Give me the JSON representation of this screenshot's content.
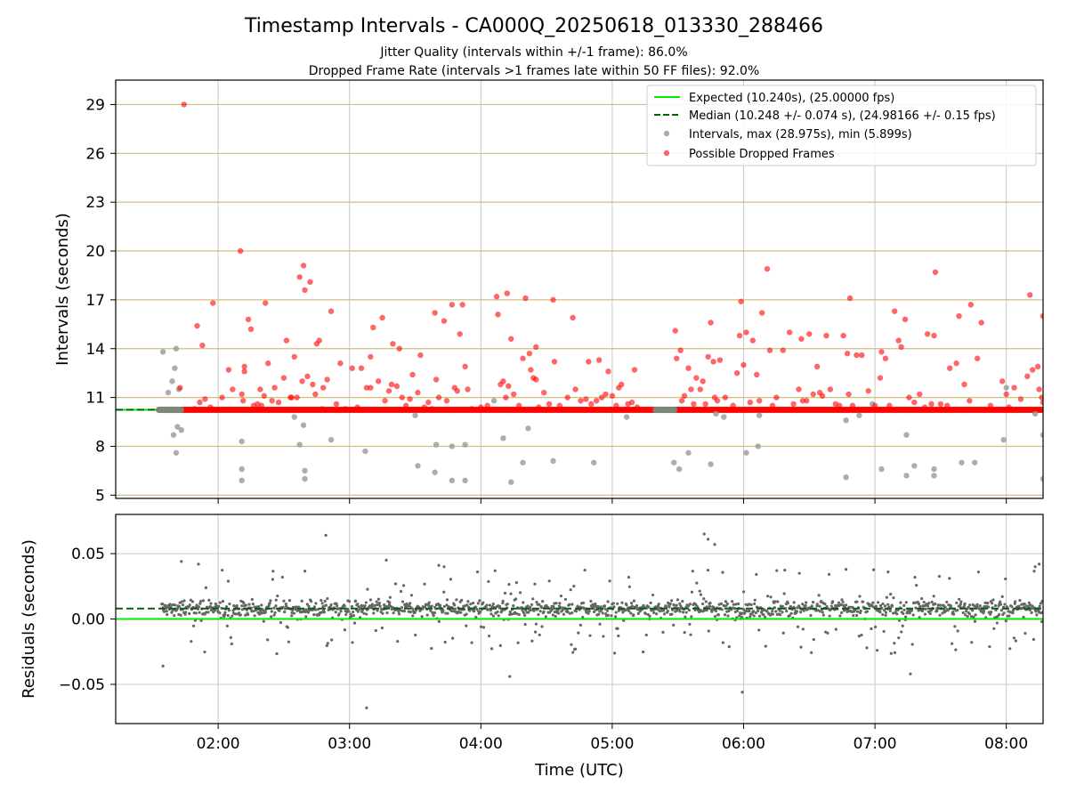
{
  "title": "Timestamp Intervals - CA000Q_20250618_013330_288466",
  "subtitle_1": "Jitter Quality (intervals within +/-1 frame): 86.0%",
  "subtitle_2": "Dropped Frame Rate (intervals >1 frames late within 50 FF files): 92.0%",
  "colors": {
    "expected": "#00ee00",
    "median": "#006400",
    "intervals": "#999999",
    "dropped": "#ff0000",
    "residuals": "#666666",
    "hgrid_top": "#d2be82",
    "grid": "#c8c8c8"
  },
  "chart_data": [
    {
      "type": "scatter",
      "ylabel": "Intervals (seconds)",
      "ylim": [
        4.8,
        30.5
      ],
      "yticks": [
        5,
        8,
        11,
        14,
        17,
        20,
        23,
        26,
        29
      ],
      "xlim_hours": [
        1.22,
        8.28
      ],
      "grid": true,
      "legend_position": "top-right",
      "legend": [
        "Expected (10.240s), (25.00000 fps)",
        "Median (10.248 +/- 0.074 s), (24.98166 +/- 0.15 fps)",
        "Intervals, max (28.975s), min (5.899s)",
        "Possible Dropped Frames"
      ],
      "expected_line": 10.24,
      "median_line": 10.248,
      "dense_band": {
        "y": 10.24,
        "x_start_hours": 1.55,
        "x_end_hours": 8.28
      },
      "gray_segments_hours": [
        [
          1.55,
          1.72
        ],
        [
          5.33,
          5.48
        ]
      ],
      "intervals_points": [
        [
          1.58,
          13.8
        ],
        [
          1.62,
          11.3
        ],
        [
          1.65,
          12.0
        ],
        [
          1.67,
          12.8
        ],
        [
          1.68,
          14.0
        ],
        [
          1.69,
          9.2
        ],
        [
          1.7,
          11.5
        ],
        [
          1.72,
          9.0
        ],
        [
          1.66,
          8.7
        ],
        [
          1.68,
          7.6
        ],
        [
          2.18,
          8.3
        ],
        [
          2.18,
          6.6
        ],
        [
          2.18,
          5.9
        ],
        [
          2.58,
          9.8
        ],
        [
          2.62,
          8.1
        ],
        [
          2.65,
          9.3
        ],
        [
          2.66,
          6.5
        ],
        [
          2.66,
          6.0
        ],
        [
          2.86,
          8.4
        ],
        [
          3.12,
          7.7
        ],
        [
          3.5,
          9.9
        ],
        [
          3.52,
          6.8
        ],
        [
          3.65,
          6.4
        ],
        [
          3.66,
          8.1
        ],
        [
          3.78,
          8.0
        ],
        [
          3.78,
          5.9
        ],
        [
          3.88,
          8.1
        ],
        [
          3.88,
          5.9
        ],
        [
          4.1,
          10.8
        ],
        [
          4.17,
          8.5
        ],
        [
          4.23,
          5.8
        ],
        [
          4.32,
          7.0
        ],
        [
          4.36,
          9.1
        ],
        [
          4.55,
          7.1
        ],
        [
          4.86,
          7.0
        ],
        [
          5.11,
          9.8
        ],
        [
          5.47,
          7.0
        ],
        [
          5.51,
          6.6
        ],
        [
          5.58,
          7.6
        ],
        [
          5.75,
          6.9
        ],
        [
          5.79,
          10.0
        ],
        [
          5.85,
          9.8
        ],
        [
          6.02,
          7.6
        ],
        [
          6.11,
          8.0
        ],
        [
          6.12,
          9.9
        ],
        [
          6.78,
          6.1
        ],
        [
          6.78,
          9.6
        ],
        [
          6.88,
          9.9
        ],
        [
          6.98,
          10.6
        ],
        [
          7.05,
          6.6
        ],
        [
          7.24,
          8.7
        ],
        [
          7.24,
          6.2
        ],
        [
          7.3,
          6.8
        ],
        [
          7.45,
          6.2
        ],
        [
          7.45,
          6.6
        ],
        [
          7.66,
          7.0
        ],
        [
          7.76,
          7.0
        ],
        [
          7.98,
          8.4
        ],
        [
          8.0,
          11.6
        ],
        [
          8.22,
          10.0
        ],
        [
          8.28,
          8.7
        ],
        [
          8.28,
          6.0
        ]
      ],
      "dropped_points": [
        [
          1.74,
          29.0
        ],
        [
          1.71,
          11.6
        ],
        [
          1.82,
          10.3
        ],
        [
          1.86,
          10.7
        ],
        [
          1.88,
          14.2
        ],
        [
          1.9,
          10.9
        ],
        [
          1.84,
          15.4
        ],
        [
          1.96,
          16.8
        ],
        [
          1.94,
          10.4
        ],
        [
          2.03,
          11.0
        ],
        [
          2.08,
          12.7
        ],
        [
          2.11,
          11.5
        ],
        [
          2.17,
          20.0
        ],
        [
          2.18,
          11.2
        ],
        [
          2.19,
          10.8
        ],
        [
          2.2,
          12.9
        ],
        [
          2.2,
          12.6
        ],
        [
          2.23,
          15.8
        ],
        [
          2.25,
          15.2
        ],
        [
          2.27,
          10.5
        ],
        [
          2.3,
          10.6
        ],
        [
          2.32,
          11.5
        ],
        [
          2.33,
          10.5
        ],
        [
          2.35,
          11.1
        ],
        [
          2.36,
          16.8
        ],
        [
          2.38,
          13.1
        ],
        [
          2.41,
          10.8
        ],
        [
          2.43,
          11.6
        ],
        [
          2.46,
          10.7
        ],
        [
          2.5,
          12.2
        ],
        [
          2.52,
          14.5
        ],
        [
          2.55,
          11.0
        ],
        [
          2.56,
          11.0
        ],
        [
          2.58,
          13.5
        ],
        [
          2.6,
          11.0
        ],
        [
          2.62,
          18.4
        ],
        [
          2.64,
          12.0
        ],
        [
          2.65,
          19.1
        ],
        [
          2.66,
          17.6
        ],
        [
          2.68,
          12.3
        ],
        [
          2.7,
          18.1
        ],
        [
          2.72,
          11.8
        ],
        [
          2.74,
          11.2
        ],
        [
          2.75,
          14.3
        ],
        [
          2.77,
          14.5
        ],
        [
          2.79,
          10.3
        ],
        [
          2.8,
          11.6
        ],
        [
          2.83,
          12.1
        ],
        [
          2.86,
          16.3
        ],
        [
          2.9,
          10.6
        ],
        [
          2.93,
          13.1
        ],
        [
          2.97,
          10.3
        ],
        [
          3.02,
          12.8
        ],
        [
          3.06,
          10.4
        ],
        [
          3.09,
          12.8
        ],
        [
          3.13,
          11.6
        ],
        [
          3.16,
          13.5
        ],
        [
          3.16,
          11.6
        ],
        [
          3.18,
          15.3
        ],
        [
          3.22,
          12.0
        ],
        [
          3.25,
          15.9
        ],
        [
          3.27,
          10.8
        ],
        [
          3.3,
          11.4
        ],
        [
          3.32,
          11.8
        ],
        [
          3.33,
          14.3
        ],
        [
          3.36,
          11.7
        ],
        [
          3.38,
          14.0
        ],
        [
          3.4,
          11.0
        ],
        [
          3.43,
          10.5
        ],
        [
          3.46,
          10.9
        ],
        [
          3.48,
          12.4
        ],
        [
          3.52,
          11.3
        ],
        [
          3.54,
          13.6
        ],
        [
          3.57,
          10.4
        ],
        [
          3.6,
          10.7
        ],
        [
          3.63,
          10.3
        ],
        [
          3.65,
          16.2
        ],
        [
          3.66,
          12.1
        ],
        [
          3.68,
          11.0
        ],
        [
          3.72,
          15.7
        ],
        [
          3.74,
          10.8
        ],
        [
          3.78,
          16.7
        ],
        [
          3.8,
          11.6
        ],
        [
          3.82,
          11.4
        ],
        [
          3.84,
          14.9
        ],
        [
          3.86,
          16.7
        ],
        [
          3.88,
          12.9
        ],
        [
          3.9,
          11.5
        ],
        [
          3.93,
          10.3
        ],
        [
          4.0,
          10.4
        ],
        [
          4.05,
          10.5
        ],
        [
          4.12,
          17.2
        ],
        [
          4.13,
          16.1
        ],
        [
          4.15,
          11.8
        ],
        [
          4.17,
          12.0
        ],
        [
          4.19,
          11.0
        ],
        [
          4.2,
          17.4
        ],
        [
          4.21,
          11.7
        ],
        [
          4.23,
          14.6
        ],
        [
          4.25,
          11.2
        ],
        [
          4.29,
          10.5
        ],
        [
          4.32,
          13.4
        ],
        [
          4.34,
          17.1
        ],
        [
          4.37,
          13.7
        ],
        [
          4.38,
          12.7
        ],
        [
          4.4,
          12.2
        ],
        [
          4.42,
          12.1
        ],
        [
          4.42,
          14.1
        ],
        [
          4.44,
          10.4
        ],
        [
          4.48,
          11.3
        ],
        [
          4.52,
          10.6
        ],
        [
          4.55,
          17.0
        ],
        [
          4.56,
          13.2
        ],
        [
          4.6,
          10.5
        ],
        [
          4.66,
          11.0
        ],
        [
          4.7,
          15.9
        ],
        [
          4.72,
          11.5
        ],
        [
          4.76,
          10.8
        ],
        [
          4.8,
          10.9
        ],
        [
          4.82,
          13.2
        ],
        [
          4.84,
          10.6
        ],
        [
          4.88,
          10.8
        ],
        [
          4.9,
          13.3
        ],
        [
          4.92,
          11.0
        ],
        [
          4.95,
          11.2
        ],
        [
          4.97,
          12.6
        ],
        [
          5.0,
          11.1
        ],
        [
          5.03,
          10.5
        ],
        [
          5.05,
          11.6
        ],
        [
          5.07,
          11.8
        ],
        [
          5.12,
          10.6
        ],
        [
          5.15,
          10.7
        ],
        [
          5.17,
          12.7
        ],
        [
          5.19,
          10.4
        ],
        [
          5.48,
          15.1
        ],
        [
          5.49,
          13.4
        ],
        [
          5.52,
          13.9
        ],
        [
          5.53,
          10.8
        ],
        [
          5.55,
          11.1
        ],
        [
          5.58,
          12.8
        ],
        [
          5.6,
          11.5
        ],
        [
          5.62,
          10.6
        ],
        [
          5.64,
          12.2
        ],
        [
          5.67,
          11.5
        ],
        [
          5.69,
          12.0
        ],
        [
          5.71,
          10.6
        ],
        [
          5.73,
          13.5
        ],
        [
          5.75,
          15.6
        ],
        [
          5.77,
          13.2
        ],
        [
          5.78,
          11.0
        ],
        [
          5.8,
          10.8
        ],
        [
          5.82,
          13.3
        ],
        [
          5.86,
          11.0
        ],
        [
          5.92,
          10.5
        ],
        [
          5.95,
          12.5
        ],
        [
          5.97,
          14.8
        ],
        [
          5.98,
          16.9
        ],
        [
          6.0,
          13.0
        ],
        [
          6.02,
          15.0
        ],
        [
          6.05,
          10.7
        ],
        [
          6.07,
          14.5
        ],
        [
          6.1,
          12.4
        ],
        [
          6.12,
          10.8
        ],
        [
          6.14,
          16.2
        ],
        [
          6.18,
          18.9
        ],
        [
          6.2,
          13.9
        ],
        [
          6.22,
          10.5
        ],
        [
          6.25,
          11.0
        ],
        [
          6.3,
          13.9
        ],
        [
          6.35,
          15.0
        ],
        [
          6.38,
          10.6
        ],
        [
          6.42,
          11.5
        ],
        [
          6.44,
          14.6
        ],
        [
          6.45,
          10.8
        ],
        [
          6.48,
          10.8
        ],
        [
          6.5,
          14.9
        ],
        [
          6.53,
          11.2
        ],
        [
          6.56,
          12.9
        ],
        [
          6.58,
          11.3
        ],
        [
          6.6,
          11.1
        ],
        [
          6.63,
          14.8
        ],
        [
          6.66,
          11.5
        ],
        [
          6.7,
          10.6
        ],
        [
          6.73,
          10.5
        ],
        [
          6.76,
          14.8
        ],
        [
          6.79,
          13.7
        ],
        [
          6.8,
          11.2
        ],
        [
          6.81,
          17.1
        ],
        [
          6.83,
          10.5
        ],
        [
          6.86,
          13.6
        ],
        [
          6.9,
          13.6
        ],
        [
          6.95,
          11.4
        ],
        [
          7.0,
          10.5
        ],
        [
          7.04,
          12.2
        ],
        [
          7.05,
          13.8
        ],
        [
          7.08,
          13.4
        ],
        [
          7.11,
          10.5
        ],
        [
          7.15,
          16.3
        ],
        [
          7.18,
          14.5
        ],
        [
          7.2,
          14.1
        ],
        [
          7.23,
          15.8
        ],
        [
          7.26,
          11.0
        ],
        [
          7.3,
          10.7
        ],
        [
          7.34,
          11.2
        ],
        [
          7.38,
          10.4
        ],
        [
          7.4,
          14.9
        ],
        [
          7.43,
          10.6
        ],
        [
          7.46,
          18.7
        ],
        [
          7.45,
          14.8
        ],
        [
          7.5,
          10.6
        ],
        [
          7.55,
          10.5
        ],
        [
          7.57,
          12.8
        ],
        [
          7.62,
          13.1
        ],
        [
          7.64,
          16.0
        ],
        [
          7.68,
          11.8
        ],
        [
          7.72,
          10.8
        ],
        [
          7.73,
          16.7
        ],
        [
          7.78,
          13.4
        ],
        [
          7.81,
          15.6
        ],
        [
          7.88,
          10.5
        ],
        [
          7.97,
          12.0
        ],
        [
          8.0,
          11.2
        ],
        [
          8.02,
          10.4
        ],
        [
          8.06,
          11.6
        ],
        [
          8.11,
          10.9
        ],
        [
          8.16,
          12.3
        ],
        [
          8.18,
          17.3
        ],
        [
          8.2,
          12.7
        ],
        [
          8.25,
          11.5
        ],
        [
          8.27,
          11.0
        ],
        [
          8.28,
          16.0
        ],
        [
          8.24,
          12.9
        ],
        [
          8.28,
          10.7
        ]
      ]
    },
    {
      "type": "scatter",
      "xlabel": "Time (UTC)",
      "ylabel": "Residuals (seconds)",
      "ylim": [
        -0.08,
        0.08
      ],
      "yticks": [
        -0.05,
        0.0,
        0.05
      ],
      "ytick_labels": [
        "−0.05",
        "0.00",
        "0.05"
      ],
      "xlim_hours": [
        1.22,
        8.28
      ],
      "xticks_hours": [
        2,
        3,
        4,
        5,
        6,
        7,
        8
      ],
      "xtick_labels": [
        "02:00",
        "03:00",
        "04:00",
        "05:00",
        "06:00",
        "07:00",
        "08:00"
      ],
      "grid": true,
      "zero_line": 0.0,
      "median_line": 0.008,
      "x_range_hours": [
        1.57,
        8.28
      ],
      "point_count": 1400,
      "typical_spread": 0.012,
      "outliers": [
        [
          2.82,
          0.064
        ],
        [
          5.7,
          0.065
        ],
        [
          5.73,
          0.061
        ],
        [
          5.78,
          0.057
        ],
        [
          3.13,
          -0.068
        ],
        [
          5.99,
          -0.056
        ],
        [
          4.22,
          -0.044
        ],
        [
          7.27,
          -0.042
        ],
        [
          1.58,
          -0.036
        ],
        [
          1.72,
          0.044
        ],
        [
          1.85,
          0.042
        ],
        [
          3.28,
          0.045
        ],
        [
          3.68,
          0.041
        ],
        [
          3.72,
          0.04
        ],
        [
          8.25,
          0.042
        ],
        [
          8.22,
          0.04
        ],
        [
          6.78,
          0.038
        ],
        [
          7.1,
          0.036
        ]
      ]
    }
  ]
}
